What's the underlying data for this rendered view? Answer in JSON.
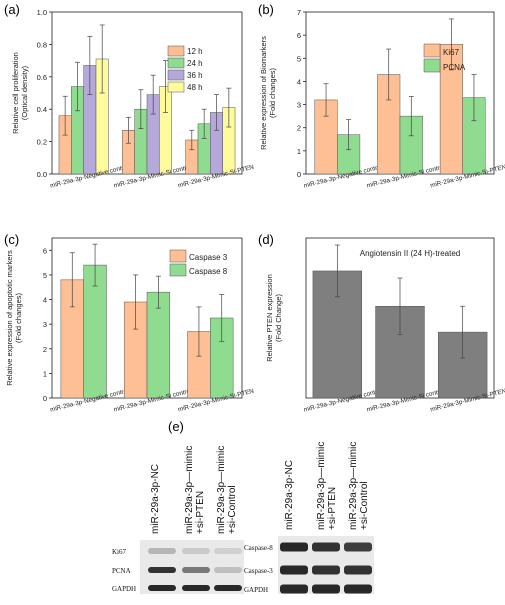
{
  "colors": {
    "c12h": "#fdbf93",
    "c24h": "#8fdb8f",
    "c36h": "#b5a9db",
    "c48h": "#fdfb9b",
    "ki67": "#fdbf93",
    "pcna": "#8fdb8f",
    "caspase3": "#fdbf93",
    "caspase8": "#8fdb8f",
    "pten": "#7f7f7f",
    "band": "#1e1e1e",
    "blot_bg": "#e9e9e9"
  },
  "chart_data": [
    {
      "panel_label": "(a)",
      "type": "bar",
      "ylabel": "Relative cell proliferation\n(Optical density)",
      "ylim": [
        0,
        1.0
      ],
      "yticks": [
        "0.0",
        "0.2",
        "0.4",
        "0.6",
        "0.8",
        "1.0"
      ],
      "categories": [
        "miR-29a-3p-Negative control",
        "miR-29a-3p-Mimic-Si control",
        "miR-29a-3p-Mimic-Si-PTEN"
      ],
      "series": [
        {
          "name": "12 h",
          "color_key": "c12h",
          "values": [
            0.36,
            0.27,
            0.21
          ],
          "errors": [
            0.12,
            0.08,
            0.06
          ]
        },
        {
          "name": "24 h",
          "color_key": "c24h",
          "values": [
            0.54,
            0.4,
            0.31
          ],
          "errors": [
            0.15,
            0.12,
            0.09
          ]
        },
        {
          "name": "36 h",
          "color_key": "c36h",
          "values": [
            0.67,
            0.49,
            0.38
          ],
          "errors": [
            0.18,
            0.12,
            0.11
          ]
        },
        {
          "name": "48 h",
          "color_key": "c48h",
          "values": [
            0.71,
            0.54,
            0.41
          ],
          "errors": [
            0.21,
            0.16,
            0.12
          ]
        }
      ],
      "legend": "top-right"
    },
    {
      "panel_label": "(b)",
      "type": "bar",
      "ylabel": "Relative expression of Biomarkers\n(Fold changes)",
      "ylim": [
        0,
        7
      ],
      "yticks": [
        "0",
        "1",
        "2",
        "3",
        "4",
        "5",
        "6",
        "7"
      ],
      "categories": [
        "miR-29a-3p-Negative control",
        "miR-29a-3p-Mimic-Si control",
        "miR-29a-3p-Mimic-Si-PTEN"
      ],
      "series": [
        {
          "name": "Ki67",
          "color_key": "ki67",
          "values": [
            3.2,
            4.3,
            5.6
          ],
          "errors": [
            0.7,
            1.1,
            1.1
          ]
        },
        {
          "name": "PCNA",
          "color_key": "pcna",
          "values": [
            1.7,
            2.5,
            3.3
          ],
          "errors": [
            0.65,
            0.85,
            1.0
          ]
        }
      ],
      "legend": "top-right"
    },
    {
      "panel_label": "(c)",
      "type": "bar",
      "ylabel": "Relative expression of apoptotic markers\n(Fold changes)",
      "ylim": [
        0,
        6.5
      ],
      "yticks": [
        "0",
        "1",
        "2",
        "3",
        "4",
        "5",
        "6"
      ],
      "categories": [
        "miR-29a-3p-Negative control",
        "miR-29a-3p-Mimic-Si control",
        "miR-29a-3p-Mimic-Si-PTEN"
      ],
      "series": [
        {
          "name": "Caspase 3",
          "color_key": "caspase3",
          "values": [
            4.8,
            3.9,
            2.7
          ],
          "errors": [
            1.1,
            1.1,
            1.0
          ]
        },
        {
          "name": "Caspase 8",
          "color_key": "caspase8",
          "values": [
            5.4,
            4.3,
            3.25
          ],
          "errors": [
            0.85,
            0.65,
            0.95
          ]
        }
      ],
      "legend": "top-right"
    },
    {
      "panel_label": "(d)",
      "type": "bar",
      "title": "Angiotensin II (24 H)-treated",
      "ylabel": "Relative PTEN expression\n(Fold Change)",
      "ylim": [
        0,
        6.8
      ],
      "categories": [
        "miR-29a-3p-Negative control",
        "miR-29a-3p-Mimic-Si control",
        "miR-29a-3p-Mimic-Si-PTEN"
      ],
      "series": [
        {
          "color_key": "pten",
          "values": [
            5.4,
            3.9,
            2.8
          ],
          "errors": [
            1.1,
            1.2,
            1.1
          ]
        }
      ]
    }
  ],
  "blot": {
    "panel_label": "(e)",
    "left": {
      "headers": [
        "miR-29a-3p-NC",
        "miR-29a-3p—mimic\n+si-PTEN",
        "miR-29a-3p—mimic\n+si-Control"
      ],
      "rows": [
        {
          "label": "Ki67",
          "intensity": [
            0.25,
            0.15,
            0.12
          ]
        },
        {
          "label": "PCNA",
          "intensity": [
            0.9,
            0.55,
            0.2
          ]
        },
        {
          "label": "GAPDH",
          "intensity": [
            0.95,
            0.95,
            0.95
          ]
        }
      ]
    },
    "right": {
      "headers": [
        "miR-29a-3p-NC",
        "miR-29a-3p—mimic\n+si-PTEN",
        "miR-29a-3p—mimic\n+si-Control"
      ],
      "rows": [
        {
          "label": "Caspase-8",
          "intensity": [
            0.95,
            0.9,
            0.85
          ]
        },
        {
          "label": "Caspase-3",
          "intensity": [
            0.95,
            0.9,
            0.9
          ]
        },
        {
          "label": "GAPDH",
          "intensity": [
            0.95,
            0.95,
            0.95
          ]
        }
      ]
    }
  }
}
